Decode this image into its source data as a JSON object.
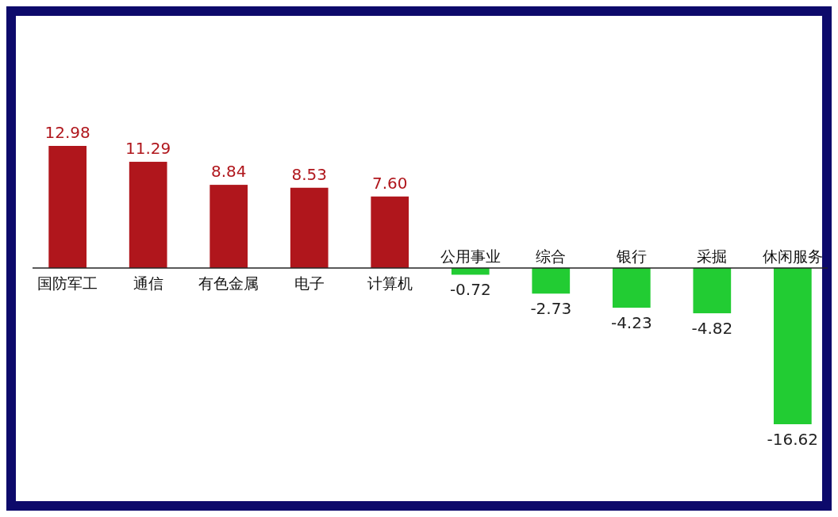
{
  "chart_data": {
    "type": "bar",
    "categories": [
      "国防军工",
      "通信",
      "有色金属",
      "电子",
      "计算机",
      "公用事业",
      "综合",
      "银行",
      "采掘",
      "休闲服务"
    ],
    "values": [
      12.98,
      11.29,
      8.84,
      8.53,
      7.6,
      -0.72,
      -2.73,
      -4.23,
      -4.82,
      -16.62
    ],
    "value_labels": [
      "12.98",
      "11.29",
      "8.84",
      "8.53",
      "7.60",
      "-0.72",
      "-2.73",
      "-4.23",
      "-4.82",
      "-16.62"
    ],
    "colors": [
      "#b0161c",
      "#b0161c",
      "#b0161c",
      "#b0161c",
      "#b0161c",
      "#22cc33",
      "#22cc33",
      "#22cc33",
      "#22cc33",
      "#22cc33"
    ]
  }
}
